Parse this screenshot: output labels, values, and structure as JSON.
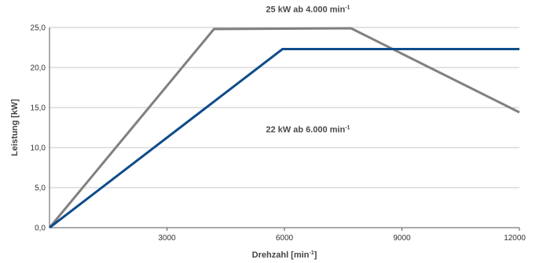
{
  "chart_data": {
    "type": "line",
    "title": "",
    "xlabel": "Drehzahl [min",
    "xlabel_sup": "-1",
    "xlabel_suffix": "]",
    "ylabel": "Leistung [kW]",
    "xlim": [
      0,
      12000
    ],
    "ylim": [
      0,
      25
    ],
    "x_ticks": [
      3000,
      6000,
      9000,
      12000
    ],
    "x_tick_labels": [
      "3000",
      "6000",
      "9000",
      "12000"
    ],
    "y_ticks": [
      0,
      5,
      10,
      15,
      20,
      25
    ],
    "y_tick_labels": [
      "0,0",
      "5,0",
      "10,0",
      "15,0",
      "20,0",
      "25,0"
    ],
    "grid": "horizontal",
    "series": [
      {
        "color": "#808080",
        "points": [
          [
            0,
            0
          ],
          [
            4200,
            24.8
          ],
          [
            7700,
            24.9
          ],
          [
            12000,
            14.4
          ]
        ]
      },
      {
        "color": "#0f4c8a",
        "points": [
          [
            0,
            0
          ],
          [
            5950,
            22.3
          ],
          [
            12000,
            22.3
          ]
        ]
      }
    ],
    "annotations": [
      {
        "text": "25 kW ab 4.000 min",
        "sup": "-1",
        "x": 6600,
        "y": 26.9
      },
      {
        "text": "22 kW ab 6.000 min",
        "sup": "-1",
        "x": 6600,
        "y": 11.9
      }
    ]
  }
}
